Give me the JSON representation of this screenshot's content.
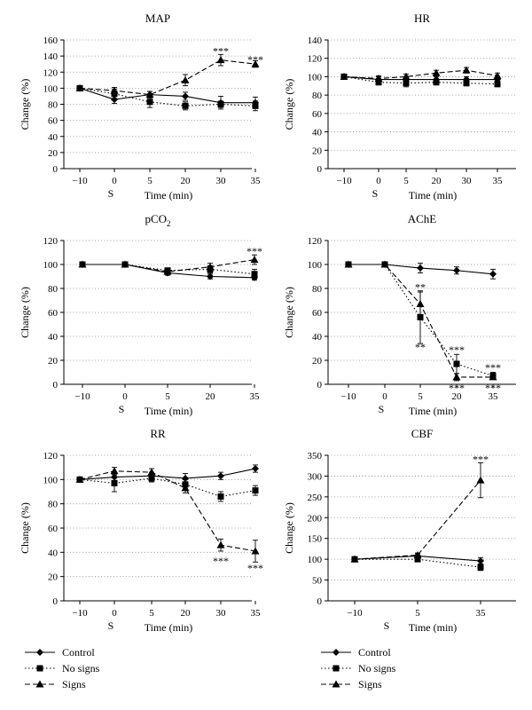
{
  "colors": {
    "ink": "#000000",
    "grid": "#888888",
    "background": "#ffffff"
  },
  "legend": [
    {
      "label": "Control",
      "style": "solid",
      "marker": "diamond"
    },
    {
      "label": "No signs",
      "style": "dotted",
      "marker": "square"
    },
    {
      "label": "Signs",
      "style": "dashed",
      "marker": "triangle"
    }
  ],
  "chart_data": [
    {
      "type": "line",
      "title": "MAP",
      "xlabel": "Time (min)",
      "ylabel": "Change (%)",
      "s_label": "S",
      "categories": [
        "−10",
        "0",
        "5",
        "20",
        "30",
        "35"
      ],
      "ylim": [
        0,
        160
      ],
      "yticks": [
        0,
        20,
        40,
        60,
        80,
        100,
        120,
        140,
        160
      ],
      "grid": true,
      "series": [
        {
          "name": "Control",
          "values": [
            100,
            86,
            92,
            90,
            82,
            82
          ],
          "err": [
            0,
            5,
            4,
            5,
            8,
            7
          ]
        },
        {
          "name": "No signs",
          "values": [
            100,
            93,
            83,
            78,
            80,
            78
          ],
          "err": [
            0,
            6,
            7,
            5,
            4,
            6
          ]
        },
        {
          "name": "Signs",
          "values": [
            100,
            97,
            92,
            110,
            135,
            130
          ],
          "err": [
            0,
            4,
            4,
            7,
            7,
            4
          ]
        }
      ],
      "annotations": [
        {
          "text": "***",
          "index": 4,
          "value": 146
        },
        {
          "text": "***",
          "index": 5,
          "value": 136
        }
      ]
    },
    {
      "type": "line",
      "title": "HR",
      "xlabel": "Time (min)",
      "ylabel": "Change (%)",
      "s_label": "S",
      "categories": [
        "−10",
        "0",
        "5",
        "20",
        "30",
        "35"
      ],
      "ylim": [
        0,
        140
      ],
      "yticks": [
        0,
        20,
        40,
        60,
        80,
        100,
        120,
        140
      ],
      "grid": true,
      "series": [
        {
          "name": "Control",
          "values": [
            100,
            97,
            97,
            97,
            97,
            97
          ],
          "err": [
            0,
            3,
            3,
            3,
            3,
            3
          ]
        },
        {
          "name": "No signs",
          "values": [
            100,
            94,
            93,
            94,
            93,
            92
          ],
          "err": [
            0,
            3,
            4,
            3,
            3,
            3
          ]
        },
        {
          "name": "Signs",
          "values": [
            100,
            98,
            100,
            104,
            107,
            101
          ],
          "err": [
            0,
            3,
            3,
            3,
            3,
            3
          ]
        }
      ],
      "annotations": []
    },
    {
      "type": "line",
      "title": "pCO",
      "title_sub": "2",
      "xlabel": "Time (min)",
      "ylabel": "Change (%)",
      "s_label": "S",
      "categories": [
        "−10",
        "0",
        "5",
        "20",
        "35"
      ],
      "ylim": [
        0,
        120
      ],
      "yticks": [
        0,
        20,
        40,
        60,
        80,
        100,
        120
      ],
      "grid": true,
      "series": [
        {
          "name": "Control",
          "values": [
            100,
            100,
            93,
            90,
            89
          ],
          "err": [
            0,
            0,
            2,
            2,
            2
          ]
        },
        {
          "name": "No signs",
          "values": [
            100,
            100,
            95,
            96,
            92
          ],
          "err": [
            0,
            0,
            2,
            3,
            4
          ]
        },
        {
          "name": "Signs",
          "values": [
            100,
            100,
            94,
            98,
            104
          ],
          "err": [
            0,
            0,
            2,
            3,
            4
          ]
        }
      ],
      "annotations": [
        {
          "text": "***",
          "index": 4,
          "value": 111
        }
      ]
    },
    {
      "type": "line",
      "title": "AChE",
      "xlabel": "Time (min)",
      "ylabel": "Change (%)",
      "s_label": "S",
      "categories": [
        "−10",
        "0",
        "5",
        "20",
        "35"
      ],
      "ylim": [
        0,
        120
      ],
      "yticks": [
        0,
        20,
        40,
        60,
        80,
        100,
        120
      ],
      "grid": true,
      "series": [
        {
          "name": "Control",
          "values": [
            100,
            100,
            97,
            95,
            92
          ],
          "err": [
            0,
            0,
            4,
            3,
            4
          ]
        },
        {
          "name": "No signs",
          "values": [
            100,
            100,
            56,
            17,
            7
          ],
          "err": [
            0,
            0,
            22,
            8,
            3
          ]
        },
        {
          "name": "Signs",
          "values": [
            100,
            100,
            67,
            6,
            6
          ],
          "err": [
            0,
            0,
            10,
            3,
            2
          ]
        }
      ],
      "annotations": [
        {
          "text": "**",
          "index": 2,
          "value": 81
        },
        {
          "text": "**",
          "index": 2,
          "value": 31
        },
        {
          "text": "***",
          "index": 3,
          "value": 29
        },
        {
          "text": "***",
          "index": 4,
          "value": 14
        },
        {
          "text": "***",
          "index": 3,
          "value": -3
        },
        {
          "text": "***",
          "index": 4,
          "value": -3
        }
      ]
    },
    {
      "type": "line",
      "title": "RR",
      "xlabel": "Time (min)",
      "ylabel": "Change (%)",
      "s_label": "S",
      "categories": [
        "−10",
        "0",
        "5",
        "20",
        "30",
        "35"
      ],
      "ylim": [
        0,
        120
      ],
      "yticks": [
        0,
        20,
        40,
        60,
        80,
        100,
        120
      ],
      "grid": true,
      "series": [
        {
          "name": "Control",
          "values": [
            100,
            102,
            103,
            101,
            103,
            109
          ],
          "err": [
            0,
            3,
            3,
            4,
            3,
            3
          ]
        },
        {
          "name": "No signs",
          "values": [
            100,
            97,
            101,
            96,
            86,
            91
          ],
          "err": [
            0,
            7,
            3,
            4,
            4,
            4
          ]
        },
        {
          "name": "Signs",
          "values": [
            100,
            107,
            106,
            93,
            46,
            41
          ],
          "err": [
            0,
            3,
            3,
            4,
            5,
            9
          ]
        }
      ],
      "annotations": [
        {
          "text": "***",
          "index": 4,
          "value": 33
        },
        {
          "text": "***",
          "index": 5,
          "value": 27
        }
      ]
    },
    {
      "type": "line",
      "title": "CBF",
      "xlabel": "Time (min)",
      "ylabel": "Change (%)",
      "s_label": "S",
      "categories": [
        "−10",
        "5",
        "35"
      ],
      "ylim": [
        0,
        350
      ],
      "yticks": [
        0,
        50,
        100,
        150,
        200,
        250,
        300,
        350
      ],
      "grid": true,
      "series": [
        {
          "name": "Control",
          "values": [
            100,
            108,
            96
          ],
          "err": [
            0,
            5,
            8
          ]
        },
        {
          "name": "No signs",
          "values": [
            100,
            100,
            81
          ],
          "err": [
            0,
            5,
            8
          ]
        },
        {
          "name": "Signs",
          "values": [
            100,
            110,
            290
          ],
          "err": [
            0,
            5,
            42
          ]
        }
      ],
      "annotations": [
        {
          "text": "***",
          "index": 2,
          "value": 340
        }
      ]
    }
  ]
}
